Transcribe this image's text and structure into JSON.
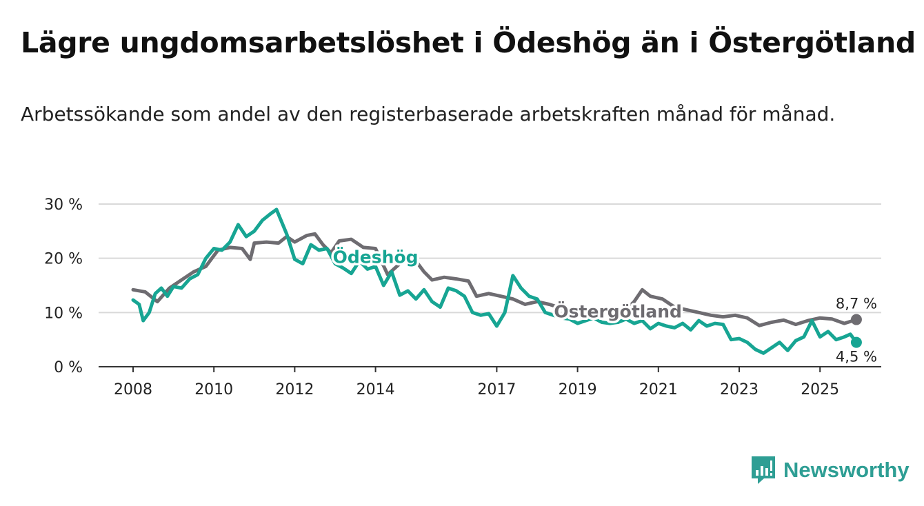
{
  "header": {
    "title": "Lägre ungdomsarbetslöshet i Ödeshög än i Östergötland",
    "subtitle": "Arbetssökande som andel av den registerbaserade arbetskraften månad för månad."
  },
  "brand": {
    "name": "Newsworthy",
    "color": "#2e9e94"
  },
  "chart_data": {
    "type": "line",
    "title": "Lägre ungdomsarbetslöshet i Ödeshög än i Östergötland",
    "subtitle": "Arbetssökande som andel av den registerbaserade arbetskraften månad för månad.",
    "xlabel": "",
    "ylabel": "",
    "xlim": [
      2008,
      2026.8
    ],
    "ylim": [
      0,
      30
    ],
    "grid": true,
    "y_ticks": [
      0,
      10,
      20,
      30
    ],
    "y_tick_labels": [
      "0 %",
      "10 %",
      "20 %",
      "30 %"
    ],
    "x_ticks": [
      2008,
      2010,
      2012,
      2014,
      2017,
      2019,
      2021,
      2023,
      2025
    ],
    "x_tick_labels": [
      "2008",
      "2010",
      "2012",
      "2014",
      "2017",
      "2019",
      "2021",
      "2023",
      "2025"
    ],
    "series": [
      {
        "name": "Östergötland",
        "color": "#6e6c71",
        "end_label": "8,7 %",
        "points": [
          [
            2008.0,
            14.2
          ],
          [
            2008.3,
            13.8
          ],
          [
            2008.6,
            12.0
          ],
          [
            2008.9,
            14.5
          ],
          [
            2009.2,
            16.0
          ],
          [
            2009.5,
            17.5
          ],
          [
            2009.8,
            18.5
          ],
          [
            2010.1,
            21.5
          ],
          [
            2010.4,
            22.0
          ],
          [
            2010.7,
            21.8
          ],
          [
            2010.9,
            19.8
          ],
          [
            2011.0,
            22.8
          ],
          [
            2011.3,
            23.0
          ],
          [
            2011.6,
            22.8
          ],
          [
            2011.8,
            24.0
          ],
          [
            2012.0,
            23.0
          ],
          [
            2012.3,
            24.2
          ],
          [
            2012.5,
            24.5
          ],
          [
            2012.7,
            22.5
          ],
          [
            2012.9,
            21.0
          ],
          [
            2013.1,
            23.2
          ],
          [
            2013.4,
            23.5
          ],
          [
            2013.7,
            22.0
          ],
          [
            2014.0,
            21.8
          ],
          [
            2014.3,
            17.0
          ],
          [
            2014.6,
            19.0
          ],
          [
            2014.9,
            20.5
          ],
          [
            2015.2,
            17.5
          ],
          [
            2015.4,
            16.0
          ],
          [
            2015.7,
            16.5
          ],
          [
            2016.0,
            16.2
          ],
          [
            2016.3,
            15.8
          ],
          [
            2016.5,
            13.0
          ],
          [
            2016.8,
            13.5
          ],
          [
            2017.1,
            13.0
          ],
          [
            2017.4,
            12.5
          ],
          [
            2017.7,
            11.5
          ],
          [
            2018.0,
            12.0
          ],
          [
            2018.3,
            11.5
          ],
          [
            2018.6,
            10.8
          ],
          [
            2018.9,
            10.5
          ],
          [
            2019.2,
            10.0
          ],
          [
            2019.5,
            10.2
          ],
          [
            2019.8,
            10.0
          ],
          [
            2020.1,
            9.8
          ],
          [
            2020.4,
            12.0
          ],
          [
            2020.6,
            14.2
          ],
          [
            2020.8,
            13.0
          ],
          [
            2021.1,
            12.5
          ],
          [
            2021.4,
            11.0
          ],
          [
            2021.7,
            10.5
          ],
          [
            2022.0,
            10.0
          ],
          [
            2022.3,
            9.5
          ],
          [
            2022.6,
            9.2
          ],
          [
            2022.9,
            9.5
          ],
          [
            2023.2,
            9.0
          ],
          [
            2023.5,
            7.6
          ],
          [
            2023.8,
            8.2
          ],
          [
            2024.1,
            8.6
          ],
          [
            2024.4,
            7.8
          ],
          [
            2024.7,
            8.5
          ],
          [
            2025.0,
            9.0
          ],
          [
            2025.3,
            8.8
          ],
          [
            2025.6,
            8.0
          ],
          [
            2025.9,
            8.7
          ]
        ]
      },
      {
        "name": "Ödeshög",
        "color": "#17a593",
        "end_label": "4,5 %",
        "points": [
          [
            2008.0,
            12.3
          ],
          [
            2008.15,
            11.5
          ],
          [
            2008.25,
            8.5
          ],
          [
            2008.4,
            10.0
          ],
          [
            2008.55,
            13.5
          ],
          [
            2008.7,
            14.5
          ],
          [
            2008.85,
            13.0
          ],
          [
            2009.0,
            14.8
          ],
          [
            2009.2,
            14.5
          ],
          [
            2009.4,
            16.2
          ],
          [
            2009.6,
            17.0
          ],
          [
            2009.8,
            20.0
          ],
          [
            2010.0,
            21.8
          ],
          [
            2010.2,
            21.5
          ],
          [
            2010.4,
            23.0
          ],
          [
            2010.6,
            26.2
          ],
          [
            2010.8,
            24.0
          ],
          [
            2011.0,
            25.0
          ],
          [
            2011.2,
            27.0
          ],
          [
            2011.4,
            28.2
          ],
          [
            2011.55,
            29.0
          ],
          [
            2011.8,
            24.5
          ],
          [
            2012.0,
            19.8
          ],
          [
            2012.2,
            19.0
          ],
          [
            2012.4,
            22.5
          ],
          [
            2012.6,
            21.5
          ],
          [
            2012.8,
            21.8
          ],
          [
            2013.0,
            19.0
          ],
          [
            2013.2,
            18.2
          ],
          [
            2013.4,
            17.2
          ],
          [
            2013.6,
            19.5
          ],
          [
            2013.8,
            18.0
          ],
          [
            2014.0,
            18.5
          ],
          [
            2014.2,
            15.0
          ],
          [
            2014.4,
            17.5
          ],
          [
            2014.6,
            13.2
          ],
          [
            2014.8,
            14.0
          ],
          [
            2015.0,
            12.5
          ],
          [
            2015.2,
            14.2
          ],
          [
            2015.4,
            12.0
          ],
          [
            2015.6,
            11.0
          ],
          [
            2015.8,
            14.5
          ],
          [
            2016.0,
            14.0
          ],
          [
            2016.2,
            13.0
          ],
          [
            2016.4,
            10.0
          ],
          [
            2016.6,
            9.5
          ],
          [
            2016.8,
            9.8
          ],
          [
            2017.0,
            7.5
          ],
          [
            2017.2,
            10.0
          ],
          [
            2017.4,
            16.8
          ],
          [
            2017.6,
            14.5
          ],
          [
            2017.8,
            13.0
          ],
          [
            2018.0,
            12.5
          ],
          [
            2018.2,
            10.0
          ],
          [
            2018.4,
            9.5
          ],
          [
            2018.6,
            9.0
          ],
          [
            2018.8,
            8.8
          ],
          [
            2019.0,
            8.0
          ],
          [
            2019.2,
            8.5
          ],
          [
            2019.4,
            9.0
          ],
          [
            2019.6,
            8.2
          ],
          [
            2019.8,
            8.0
          ],
          [
            2020.0,
            8.2
          ],
          [
            2020.2,
            8.8
          ],
          [
            2020.4,
            8.0
          ],
          [
            2020.6,
            8.5
          ],
          [
            2020.8,
            7.0
          ],
          [
            2021.0,
            8.0
          ],
          [
            2021.2,
            7.5
          ],
          [
            2021.4,
            7.2
          ],
          [
            2021.6,
            8.0
          ],
          [
            2021.8,
            6.8
          ],
          [
            2022.0,
            8.5
          ],
          [
            2022.2,
            7.5
          ],
          [
            2022.4,
            8.0
          ],
          [
            2022.6,
            7.8
          ],
          [
            2022.8,
            5.0
          ],
          [
            2023.0,
            5.2
          ],
          [
            2023.2,
            4.5
          ],
          [
            2023.4,
            3.2
          ],
          [
            2023.6,
            2.5
          ],
          [
            2023.8,
            3.5
          ],
          [
            2024.0,
            4.5
          ],
          [
            2024.2,
            3.0
          ],
          [
            2024.4,
            4.8
          ],
          [
            2024.6,
            5.5
          ],
          [
            2024.8,
            8.5
          ],
          [
            2025.0,
            5.5
          ],
          [
            2025.2,
            6.5
          ],
          [
            2025.4,
            5.0
          ],
          [
            2025.6,
            5.5
          ],
          [
            2025.75,
            6.0
          ],
          [
            2025.9,
            4.5
          ]
        ]
      }
    ],
    "annotations": [
      {
        "text": "Ödeshög",
        "series": "Ödeshög",
        "near_x": 2014.0,
        "near_y": 20
      },
      {
        "text": "Östergötland",
        "series": "Östergötland",
        "near_x": 2020.0,
        "near_y": 10
      }
    ]
  }
}
